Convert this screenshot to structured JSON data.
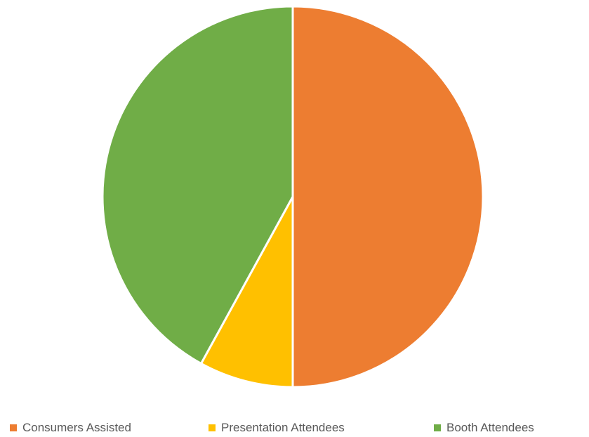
{
  "chart_data": {
    "type": "pie",
    "title": "",
    "categories": [
      "Consumers Assisted",
      "Presentation Attendees",
      "Booth Attendees"
    ],
    "values": [
      50,
      8,
      42
    ],
    "colors": [
      "#ED7D31",
      "#FFC000",
      "#70AD47"
    ],
    "start_angle_deg": 0,
    "direction": "clockwise",
    "legend_position": "bottom",
    "legend": [
      {
        "label": "Consumers Assisted",
        "color": "#ED7D31"
      },
      {
        "label": "Presentation Attendees",
        "color": "#FFC000"
      },
      {
        "label": "Booth Attendees",
        "color": "#70AD47"
      }
    ]
  }
}
